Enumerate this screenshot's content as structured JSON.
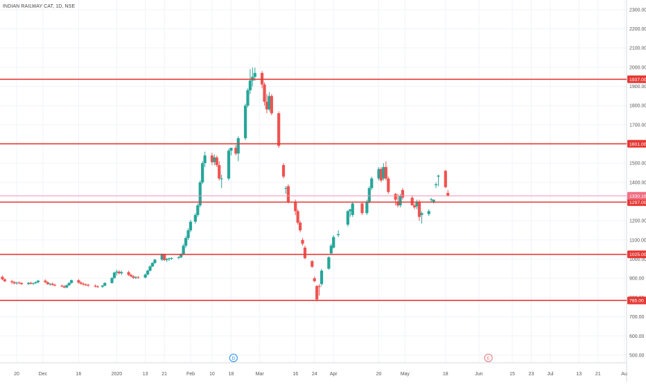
{
  "title": "INDIAN RAILWAY CAT, 1D, NSE",
  "colors": {
    "up": "#26a69a",
    "down": "#ef5350",
    "level_line": "#e53935",
    "current_line": "#f48fb1",
    "grid": "#f0f3fa",
    "axis_text": "#555555",
    "event_dividend": "#1e88e5",
    "event_earnings": "#e57373"
  },
  "events": [
    {
      "date": "2020-02-19",
      "label": "D",
      "kind": "dividend"
    },
    {
      "date": "2020-06-05",
      "label": "E",
      "kind": "earnings"
    }
  ],
  "chart_data": {
    "type": "candlestick",
    "grid": true,
    "ylim": [
      460,
      2350
    ],
    "xlim": [
      "2019-11-13",
      "2020-08-02"
    ],
    "y_ticks": [
      500,
      600,
      700,
      800,
      900,
      1000,
      1100,
      1200,
      1300,
      1400,
      1500,
      1600,
      1700,
      1800,
      1900,
      2000,
      2100,
      2200,
      2300
    ],
    "y_tick_labels": [
      "500.00",
      "600.00",
      "700.00",
      "800.00",
      "900.00",
      "1000.00",
      "1100.00",
      "1200.00",
      "1300.00",
      "1400.00",
      "1500.00",
      "1600.00",
      "1700.00",
      "1800.00",
      "1900.00",
      "2000.00",
      "2100.00",
      "2200.00",
      "2300.00"
    ],
    "x_ticks": [
      {
        "date": "2019-11-20",
        "label": "20"
      },
      {
        "date": "2019-12-01",
        "label": "Dec"
      },
      {
        "date": "2019-12-16",
        "label": "16"
      },
      {
        "date": "2020-01-01",
        "label": "2020"
      },
      {
        "date": "2020-01-13",
        "label": "13"
      },
      {
        "date": "2020-01-21",
        "label": "21"
      },
      {
        "date": "2020-02-01",
        "label": "Feb"
      },
      {
        "date": "2020-02-10",
        "label": "10"
      },
      {
        "date": "2020-02-18",
        "label": "18"
      },
      {
        "date": "2020-03-01",
        "label": "Mar"
      },
      {
        "date": "2020-03-16",
        "label": "16"
      },
      {
        "date": "2020-03-24",
        "label": "24"
      },
      {
        "date": "2020-04-01",
        "label": "Apr"
      },
      {
        "date": "2020-04-20",
        "label": "20"
      },
      {
        "date": "2020-05-01",
        "label": "May"
      },
      {
        "date": "2020-05-18",
        "label": "18"
      },
      {
        "date": "2020-06-01",
        "label": "Jun"
      },
      {
        "date": "2020-06-15",
        "label": "15"
      },
      {
        "date": "2020-06-23",
        "label": "23"
      },
      {
        "date": "2020-07-01",
        "label": "Jul"
      },
      {
        "date": "2020-07-13",
        "label": "13"
      },
      {
        "date": "2020-07-21",
        "label": "21"
      },
      {
        "date": "2020-08-01",
        "label": "Au"
      }
    ],
    "horizontal_levels": [
      {
        "value": 1937,
        "label": "1937.00"
      },
      {
        "value": 1601,
        "label": "1601.00"
      },
      {
        "value": 1297,
        "label": "1297.00"
      },
      {
        "value": 1025,
        "label": "1025.00"
      },
      {
        "value": 785,
        "label": "785.00"
      }
    ],
    "current_price": {
      "value": 1330,
      "label": "1330.10"
    },
    "candles": [
      {
        "d": "2019-11-14",
        "o": 908,
        "h": 915,
        "l": 890,
        "c": 895
      },
      {
        "d": "2019-11-15",
        "o": 895,
        "h": 900,
        "l": 880,
        "c": 885
      },
      {
        "d": "2019-11-18",
        "o": 885,
        "h": 892,
        "l": 870,
        "c": 880
      },
      {
        "d": "2019-11-19",
        "o": 880,
        "h": 886,
        "l": 868,
        "c": 874
      },
      {
        "d": "2019-11-20",
        "o": 874,
        "h": 882,
        "l": 866,
        "c": 878
      },
      {
        "d": "2019-11-21",
        "o": 878,
        "h": 884,
        "l": 870,
        "c": 876
      },
      {
        "d": "2019-11-22",
        "o": 876,
        "h": 880,
        "l": 866,
        "c": 870
      },
      {
        "d": "2019-11-25",
        "o": 870,
        "h": 880,
        "l": 866,
        "c": 877
      },
      {
        "d": "2019-11-26",
        "o": 877,
        "h": 882,
        "l": 868,
        "c": 872
      },
      {
        "d": "2019-11-27",
        "o": 872,
        "h": 878,
        "l": 866,
        "c": 875
      },
      {
        "d": "2019-11-28",
        "o": 875,
        "h": 884,
        "l": 870,
        "c": 880
      },
      {
        "d": "2019-11-29",
        "o": 880,
        "h": 892,
        "l": 874,
        "c": 888
      },
      {
        "d": "2019-12-02",
        "o": 888,
        "h": 895,
        "l": 876,
        "c": 880
      },
      {
        "d": "2019-12-03",
        "o": 880,
        "h": 885,
        "l": 866,
        "c": 870
      },
      {
        "d": "2019-12-04",
        "o": 870,
        "h": 876,
        "l": 862,
        "c": 872
      },
      {
        "d": "2019-12-05",
        "o": 872,
        "h": 878,
        "l": 862,
        "c": 866
      },
      {
        "d": "2019-12-06",
        "o": 866,
        "h": 872,
        "l": 858,
        "c": 862
      },
      {
        "d": "2019-12-09",
        "o": 862,
        "h": 868,
        "l": 854,
        "c": 858
      },
      {
        "d": "2019-12-10",
        "o": 858,
        "h": 865,
        "l": 848,
        "c": 852
      },
      {
        "d": "2019-12-11",
        "o": 852,
        "h": 868,
        "l": 848,
        "c": 864
      },
      {
        "d": "2019-12-12",
        "o": 864,
        "h": 880,
        "l": 860,
        "c": 876
      },
      {
        "d": "2019-12-13",
        "o": 876,
        "h": 894,
        "l": 872,
        "c": 890
      },
      {
        "d": "2019-12-16",
        "o": 890,
        "h": 896,
        "l": 872,
        "c": 878
      },
      {
        "d": "2019-12-17",
        "o": 878,
        "h": 884,
        "l": 866,
        "c": 872
      },
      {
        "d": "2019-12-18",
        "o": 872,
        "h": 878,
        "l": 862,
        "c": 868
      },
      {
        "d": "2019-12-19",
        "o": 868,
        "h": 874,
        "l": 860,
        "c": 866
      },
      {
        "d": "2019-12-20",
        "o": 866,
        "h": 872,
        "l": 856,
        "c": 862
      },
      {
        "d": "2019-12-23",
        "o": 862,
        "h": 868,
        "l": 852,
        "c": 858
      },
      {
        "d": "2019-12-24",
        "o": 858,
        "h": 864,
        "l": 850,
        "c": 856
      },
      {
        "d": "2019-12-26",
        "o": 856,
        "h": 866,
        "l": 850,
        "c": 862
      },
      {
        "d": "2019-12-27",
        "o": 862,
        "h": 880,
        "l": 858,
        "c": 876
      },
      {
        "d": "2019-12-30",
        "o": 876,
        "h": 906,
        "l": 872,
        "c": 902
      },
      {
        "d": "2019-12-31",
        "o": 902,
        "h": 935,
        "l": 898,
        "c": 930
      },
      {
        "d": "2020-01-01",
        "o": 930,
        "h": 945,
        "l": 915,
        "c": 935
      },
      {
        "d": "2020-01-02",
        "o": 935,
        "h": 942,
        "l": 920,
        "c": 926
      },
      {
        "d": "2020-01-03",
        "o": 926,
        "h": 940,
        "l": 918,
        "c": 932
      },
      {
        "d": "2020-01-06",
        "o": 932,
        "h": 940,
        "l": 912,
        "c": 918
      },
      {
        "d": "2020-01-07",
        "o": 918,
        "h": 924,
        "l": 906,
        "c": 910
      },
      {
        "d": "2020-01-08",
        "o": 910,
        "h": 916,
        "l": 898,
        "c": 902
      },
      {
        "d": "2020-01-09",
        "o": 902,
        "h": 912,
        "l": 896,
        "c": 906
      },
      {
        "d": "2020-01-10",
        "o": 906,
        "h": 912,
        "l": 898,
        "c": 904
      },
      {
        "d": "2020-01-13",
        "o": 904,
        "h": 925,
        "l": 900,
        "c": 920
      },
      {
        "d": "2020-01-14",
        "o": 920,
        "h": 945,
        "l": 916,
        "c": 940
      },
      {
        "d": "2020-01-15",
        "o": 940,
        "h": 968,
        "l": 936,
        "c": 962
      },
      {
        "d": "2020-01-16",
        "o": 962,
        "h": 985,
        "l": 958,
        "c": 980
      },
      {
        "d": "2020-01-17",
        "o": 980,
        "h": 1002,
        "l": 975,
        "c": 997
      },
      {
        "d": "2020-01-20",
        "o": 997,
        "h": 1030,
        "l": 990,
        "c": 1022
      },
      {
        "d": "2020-01-21",
        "o": 1022,
        "h": 1028,
        "l": 990,
        "c": 995
      },
      {
        "d": "2020-01-22",
        "o": 995,
        "h": 1006,
        "l": 985,
        "c": 1000
      },
      {
        "d": "2020-01-23",
        "o": 1000,
        "h": 1008,
        "l": 990,
        "c": 1004
      },
      {
        "d": "2020-01-24",
        "o": 1004,
        "h": 1010,
        "l": 996,
        "c": 1006
      },
      {
        "d": "2020-01-27",
        "o": 1006,
        "h": 1016,
        "l": 1000,
        "c": 1010
      },
      {
        "d": "2020-01-28",
        "o": 1010,
        "h": 1030,
        "l": 1005,
        "c": 1025
      },
      {
        "d": "2020-01-29",
        "o": 1025,
        "h": 1080,
        "l": 1020,
        "c": 1070
      },
      {
        "d": "2020-01-30",
        "o": 1070,
        "h": 1120,
        "l": 1060,
        "c": 1110
      },
      {
        "d": "2020-01-31",
        "o": 1110,
        "h": 1160,
        "l": 1100,
        "c": 1150
      },
      {
        "d": "2020-02-01",
        "o": 1150,
        "h": 1205,
        "l": 1140,
        "c": 1195
      },
      {
        "d": "2020-02-03",
        "o": 1195,
        "h": 1240,
        "l": 1185,
        "c": 1230
      },
      {
        "d": "2020-02-04",
        "o": 1230,
        "h": 1290,
        "l": 1220,
        "c": 1280
      },
      {
        "d": "2020-02-05",
        "o": 1280,
        "h": 1410,
        "l": 1270,
        "c": 1400
      },
      {
        "d": "2020-02-06",
        "o": 1400,
        "h": 1510,
        "l": 1390,
        "c": 1500
      },
      {
        "d": "2020-02-07",
        "o": 1500,
        "h": 1560,
        "l": 1480,
        "c": 1540
      },
      {
        "d": "2020-02-10",
        "o": 1540,
        "h": 1555,
        "l": 1490,
        "c": 1505
      },
      {
        "d": "2020-02-11",
        "o": 1505,
        "h": 1545,
        "l": 1490,
        "c": 1530
      },
      {
        "d": "2020-02-12",
        "o": 1530,
        "h": 1540,
        "l": 1480,
        "c": 1490
      },
      {
        "d": "2020-02-13",
        "o": 1490,
        "h": 1510,
        "l": 1410,
        "c": 1420
      },
      {
        "d": "2020-02-14",
        "o": 1420,
        "h": 1440,
        "l": 1370,
        "c": 1420
      },
      {
        "d": "2020-02-17",
        "o": 1420,
        "h": 1575,
        "l": 1410,
        "c": 1565
      },
      {
        "d": "2020-02-18",
        "o": 1565,
        "h": 1580,
        "l": 1540,
        "c": 1580
      },
      {
        "d": "2020-02-20",
        "o": 1580,
        "h": 1595,
        "l": 1540,
        "c": 1550
      },
      {
        "d": "2020-02-21",
        "o": 1550,
        "h": 1640,
        "l": 1510,
        "c": 1630
      },
      {
        "d": "2020-02-24",
        "o": 1630,
        "h": 1810,
        "l": 1620,
        "c": 1800
      },
      {
        "d": "2020-02-25",
        "o": 1800,
        "h": 1890,
        "l": 1790,
        "c": 1880
      },
      {
        "d": "2020-02-26",
        "o": 1880,
        "h": 1990,
        "l": 1860,
        "c": 1930
      },
      {
        "d": "2020-02-27",
        "o": 1930,
        "h": 1998,
        "l": 1900,
        "c": 1950
      },
      {
        "d": "2020-02-28",
        "o": 1950,
        "h": 1998,
        "l": 1930,
        "c": 1970
      },
      {
        "d": "2020-03-02",
        "o": 1970,
        "h": 1980,
        "l": 1890,
        "c": 1910
      },
      {
        "d": "2020-03-03",
        "o": 1910,
        "h": 1920,
        "l": 1800,
        "c": 1820
      },
      {
        "d": "2020-03-04",
        "o": 1820,
        "h": 1860,
        "l": 1760,
        "c": 1780
      },
      {
        "d": "2020-03-05",
        "o": 1780,
        "h": 1870,
        "l": 1770,
        "c": 1850
      },
      {
        "d": "2020-03-06",
        "o": 1850,
        "h": 1860,
        "l": 1750,
        "c": 1760
      },
      {
        "d": "2020-03-09",
        "o": 1760,
        "h": 1770,
        "l": 1580,
        "c": 1590
      },
      {
        "d": "2020-03-11",
        "o": 1490,
        "h": 1500,
        "l": 1420,
        "c": 1430
      },
      {
        "d": "2020-03-12",
        "o": 1370,
        "h": 1380,
        "l": 1340,
        "c": 1370
      },
      {
        "d": "2020-03-13",
        "o": 1380,
        "h": 1390,
        "l": 1290,
        "c": 1300
      },
      {
        "d": "2020-03-16",
        "o": 1300,
        "h": 1310,
        "l": 1230,
        "c": 1250
      },
      {
        "d": "2020-03-17",
        "o": 1250,
        "h": 1260,
        "l": 1180,
        "c": 1190
      },
      {
        "d": "2020-03-18",
        "o": 1190,
        "h": 1200,
        "l": 1140,
        "c": 1150
      },
      {
        "d": "2020-03-19",
        "o": 1100,
        "h": 1110,
        "l": 1070,
        "c": 1080
      },
      {
        "d": "2020-03-20",
        "o": 1060,
        "h": 1070,
        "l": 1000,
        "c": 1005
      },
      {
        "d": "2020-03-23",
        "o": 990,
        "h": 995,
        "l": 955,
        "c": 960
      },
      {
        "d": "2020-03-24",
        "o": 900,
        "h": 910,
        "l": 880,
        "c": 885
      },
      {
        "d": "2020-03-25",
        "o": 860,
        "h": 865,
        "l": 780,
        "c": 790
      },
      {
        "d": "2020-03-26",
        "o": 860,
        "h": 870,
        "l": 810,
        "c": 855
      },
      {
        "d": "2020-03-27",
        "o": 870,
        "h": 950,
        "l": 860,
        "c": 940
      },
      {
        "d": "2020-03-30",
        "o": 950,
        "h": 1015,
        "l": 945,
        "c": 1010
      },
      {
        "d": "2020-03-31",
        "o": 1030,
        "h": 1080,
        "l": 1025,
        "c": 1070
      },
      {
        "d": "2020-04-01",
        "o": 1060,
        "h": 1125,
        "l": 1055,
        "c": 1115
      },
      {
        "d": "2020-04-03",
        "o": 1125,
        "h": 1150,
        "l": 1115,
        "c": 1130
      },
      {
        "d": "2020-04-07",
        "o": 1180,
        "h": 1255,
        "l": 1170,
        "c": 1250
      },
      {
        "d": "2020-04-08",
        "o": 1250,
        "h": 1260,
        "l": 1220,
        "c": 1260
      },
      {
        "d": "2020-04-09",
        "o": 1230,
        "h": 1300,
        "l": 1220,
        "c": 1290
      },
      {
        "d": "2020-04-13",
        "o": 1290,
        "h": 1300,
        "l": 1230,
        "c": 1240
      },
      {
        "d": "2020-04-15",
        "o": 1240,
        "h": 1310,
        "l": 1230,
        "c": 1300
      },
      {
        "d": "2020-04-16",
        "o": 1300,
        "h": 1380,
        "l": 1290,
        "c": 1370
      },
      {
        "d": "2020-04-17",
        "o": 1370,
        "h": 1430,
        "l": 1360,
        "c": 1420
      },
      {
        "d": "2020-04-20",
        "o": 1420,
        "h": 1480,
        "l": 1410,
        "c": 1470
      },
      {
        "d": "2020-04-21",
        "o": 1470,
        "h": 1480,
        "l": 1400,
        "c": 1410
      },
      {
        "d": "2020-04-22",
        "o": 1420,
        "h": 1500,
        "l": 1410,
        "c": 1480
      },
      {
        "d": "2020-04-23",
        "o": 1480,
        "h": 1510,
        "l": 1410,
        "c": 1420
      },
      {
        "d": "2020-04-24",
        "o": 1420,
        "h": 1430,
        "l": 1340,
        "c": 1350
      },
      {
        "d": "2020-04-27",
        "o": 1340,
        "h": 1345,
        "l": 1280,
        "c": 1310
      },
      {
        "d": "2020-04-28",
        "o": 1300,
        "h": 1340,
        "l": 1270,
        "c": 1280
      },
      {
        "d": "2020-04-29",
        "o": 1280,
        "h": 1340,
        "l": 1270,
        "c": 1330
      },
      {
        "d": "2020-04-30",
        "o": 1360,
        "h": 1370,
        "l": 1310,
        "c": 1320
      },
      {
        "d": "2020-05-04",
        "o": 1320,
        "h": 1330,
        "l": 1290,
        "c": 1280
      },
      {
        "d": "2020-05-05",
        "o": 1280,
        "h": 1290,
        "l": 1260,
        "c": 1270
      },
      {
        "d": "2020-05-06",
        "o": 1275,
        "h": 1310,
        "l": 1260,
        "c": 1300
      },
      {
        "d": "2020-05-07",
        "o": 1300,
        "h": 1310,
        "l": 1200,
        "c": 1220
      },
      {
        "d": "2020-05-08",
        "o": 1230,
        "h": 1250,
        "l": 1185,
        "c": 1240
      },
      {
        "d": "2020-05-11",
        "o": 1235,
        "h": 1260,
        "l": 1225,
        "c": 1250
      },
      {
        "d": "2020-05-12",
        "o": 1310,
        "h": 1320,
        "l": 1300,
        "c": 1312
      },
      {
        "d": "2020-05-13",
        "o": 1300,
        "h": 1310,
        "l": 1290,
        "c": 1310
      },
      {
        "d": "2020-05-14",
        "o": 1385,
        "h": 1400,
        "l": 1370,
        "c": 1390
      },
      {
        "d": "2020-05-15",
        "o": 1430,
        "h": 1440,
        "l": 1380,
        "c": 1435
      },
      {
        "d": "2020-05-18",
        "o": 1460,
        "h": 1465,
        "l": 1370,
        "c": 1375
      },
      {
        "d": "2020-05-19",
        "o": 1345,
        "h": 1360,
        "l": 1325,
        "c": 1330
      }
    ]
  }
}
